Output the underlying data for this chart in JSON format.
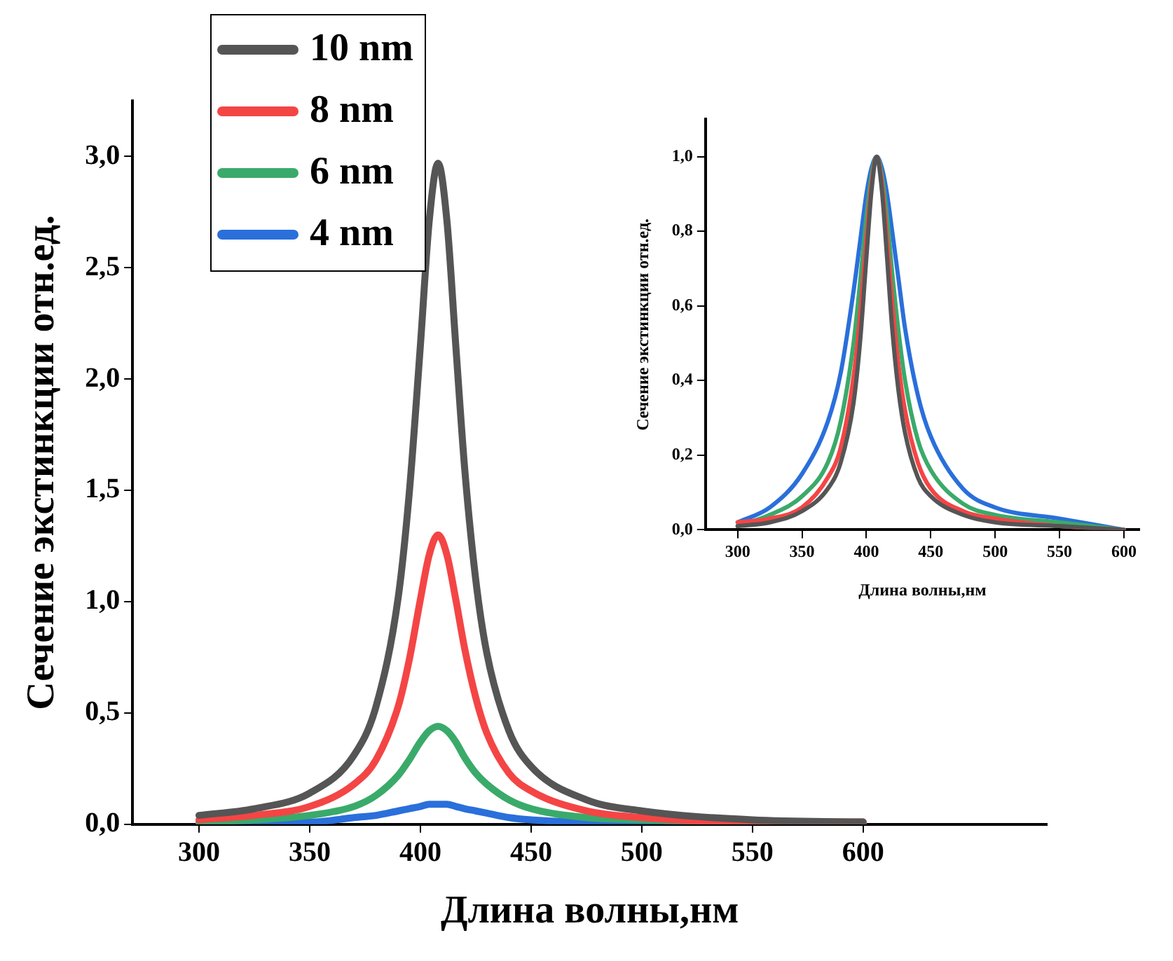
{
  "chart_data": [
    {
      "type": "line",
      "xlabel": "Длина волны,нм",
      "ylabel": "Сечение экстинкции отн.ед.",
      "x": [
        300,
        325,
        350,
        370,
        380,
        390,
        395,
        400,
        404,
        408,
        412,
        416,
        420,
        425,
        430,
        440,
        450,
        475,
        500,
        550,
        600
      ],
      "xlim": [
        270,
        683
      ],
      "xticks": [
        300,
        350,
        400,
        450,
        500,
        550,
        600
      ],
      "ylim": [
        0,
        3.25
      ],
      "yticks": [
        {
          "value": 0,
          "label": "0,0"
        },
        {
          "value": 0.5,
          "label": "0,5"
        },
        {
          "value": 1,
          "label": "1,0"
        },
        {
          "value": 1.5,
          "label": "1,5"
        },
        {
          "value": 2,
          "label": "2,0"
        },
        {
          "value": 2.5,
          "label": "2,5"
        },
        {
          "value": 3,
          "label": "3,0"
        }
      ],
      "grid": false,
      "legend": "top left",
      "marker": "none",
      "line_style": "solid",
      "series": [
        {
          "name": "10 nm",
          "color": "#555555",
          "values": [
            0.04,
            0.07,
            0.14,
            0.31,
            0.53,
            1.02,
            1.49,
            2.15,
            2.71,
            2.97,
            2.71,
            2.15,
            1.6,
            1.1,
            0.77,
            0.42,
            0.26,
            0.11,
            0.06,
            0.02,
            0.01
          ]
        },
        {
          "name": "8 nm",
          "color": "#f44545",
          "values": [
            0.02,
            0.04,
            0.08,
            0.18,
            0.29,
            0.53,
            0.74,
            1.01,
            1.21,
            1.3,
            1.21,
            1.01,
            0.79,
            0.57,
            0.41,
            0.23,
            0.15,
            0.06,
            0.03,
            0.01,
            0.01
          ]
        },
        {
          "name": "6 nm",
          "color": "#3aaa6a",
          "values": [
            0.01,
            0.02,
            0.04,
            0.08,
            0.13,
            0.22,
            0.29,
            0.37,
            0.42,
            0.44,
            0.42,
            0.37,
            0.3,
            0.23,
            0.18,
            0.11,
            0.07,
            0.03,
            0.02,
            0.01,
            0
          ]
        },
        {
          "name": "4 nm",
          "color": "#2a6fdb",
          "values": [
            0,
            0.01,
            0.01,
            0.03,
            0.04,
            0.06,
            0.07,
            0.08,
            0.09,
            0.09,
            0.09,
            0.08,
            0.07,
            0.06,
            0.05,
            0.03,
            0.02,
            0.01,
            0.01,
            0,
            0
          ]
        }
      ]
    },
    {
      "type": "line",
      "xlabel": "Длина волны,нм",
      "ylabel": "Сечение экстинкции отн.ед.",
      "x": [
        300,
        325,
        350,
        370,
        380,
        390,
        395,
        400,
        404,
        408,
        412,
        416,
        420,
        425,
        430,
        440,
        450,
        475,
        500,
        550,
        600
      ],
      "xlim": [
        275,
        612
      ],
      "xticks": [
        300,
        350,
        400,
        450,
        500,
        550,
        600
      ],
      "ylim": [
        0,
        1.1
      ],
      "yticks": [
        {
          "value": 0,
          "label": "0,0"
        },
        {
          "value": 0.2,
          "label": "0,2"
        },
        {
          "value": 0.4,
          "label": "0,4"
        },
        {
          "value": 0.6,
          "label": "0,6"
        },
        {
          "value": 0.8,
          "label": "0,8"
        },
        {
          "value": 1,
          "label": "1,0"
        }
      ],
      "grid": false,
      "legend": false,
      "marker": "none",
      "line_style": "solid",
      "series": [
        {
          "color": "#555555",
          "values": [
            0.01,
            0.02,
            0.05,
            0.11,
            0.18,
            0.34,
            0.5,
            0.73,
            0.91,
            1,
            0.91,
            0.73,
            0.54,
            0.37,
            0.26,
            0.14,
            0.09,
            0.04,
            0.02,
            0.01,
            0
          ]
        },
        {
          "color": "#f44545",
          "values": [
            0.02,
            0.03,
            0.06,
            0.14,
            0.22,
            0.41,
            0.57,
            0.78,
            0.93,
            1,
            0.93,
            0.78,
            0.61,
            0.44,
            0.32,
            0.18,
            0.11,
            0.05,
            0.03,
            0.01,
            0
          ]
        },
        {
          "color": "#3aaa6a",
          "values": [
            0.01,
            0.04,
            0.09,
            0.18,
            0.29,
            0.5,
            0.66,
            0.84,
            0.95,
            1,
            0.95,
            0.84,
            0.69,
            0.53,
            0.4,
            0.24,
            0.16,
            0.07,
            0.04,
            0.02,
            0
          ]
        },
        {
          "color": "#2a6fdb",
          "values": [
            0.02,
            0.06,
            0.15,
            0.29,
            0.42,
            0.64,
            0.77,
            0.9,
            0.97,
            1,
            0.97,
            0.9,
            0.8,
            0.67,
            0.54,
            0.36,
            0.25,
            0.11,
            0.06,
            0.03,
            0
          ]
        }
      ]
    }
  ]
}
